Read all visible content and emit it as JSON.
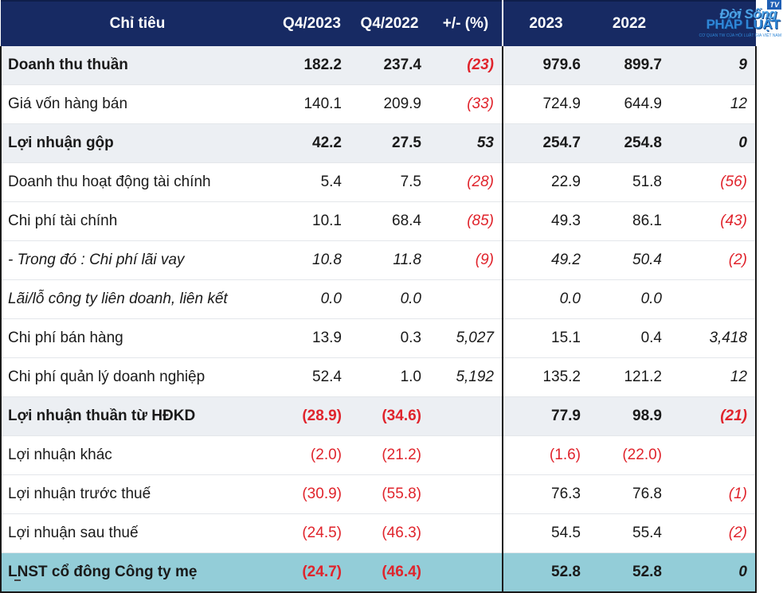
{
  "header": {
    "label": "Chỉ tiêu",
    "cols": [
      "Q4/2023",
      "Q4/2022",
      "+/- (%)",
      "2023",
      "2022",
      ""
    ]
  },
  "rows": [
    {
      "label": "Doanh thu thuần",
      "v": [
        "182.2",
        "237.4",
        "(23)",
        "979.6",
        "899.7",
        "9"
      ]
    },
    {
      "label": "Giá vốn hàng bán",
      "v": [
        "140.1",
        "209.9",
        "(33)",
        "724.9",
        "644.9",
        "12"
      ]
    },
    {
      "label": "Lợi nhuận gộp",
      "v": [
        "42.2",
        "27.5",
        "53",
        "254.7",
        "254.8",
        "0"
      ]
    },
    {
      "label": "Doanh thu hoạt động tài chính",
      "v": [
        "5.4",
        "7.5",
        "(28)",
        "22.9",
        "51.8",
        "(56)"
      ]
    },
    {
      "label": "Chi phí tài chính",
      "v": [
        "10.1",
        "68.4",
        "(85)",
        "49.3",
        "86.1",
        "(43)"
      ]
    },
    {
      "label": "- Trong đó : Chi phí lãi vay",
      "v": [
        "10.8",
        "11.8",
        "(9)",
        "49.2",
        "50.4",
        "(2)"
      ]
    },
    {
      "label": "Lãi/lỗ công ty liên doanh, liên kết",
      "v": [
        "0.0",
        "0.0",
        "",
        "0.0",
        "0.0",
        ""
      ]
    },
    {
      "label": "Chi phí bán hàng",
      "v": [
        "13.9",
        "0.3",
        "5,027",
        "15.1",
        "0.4",
        "3,418"
      ]
    },
    {
      "label": "Chi phí quản lý doanh nghiệp",
      "v": [
        "52.4",
        "1.0",
        "5,192",
        "135.2",
        "121.2",
        "12"
      ]
    },
    {
      "label": "Lợi nhuận thuần từ HĐKD",
      "v": [
        "(28.9)",
        "(34.6)",
        "",
        "77.9",
        "98.9",
        "(21)"
      ]
    },
    {
      "label": "Lợi nhuận khác",
      "v": [
        "(2.0)",
        "(21.2)",
        "",
        "(1.6)",
        "(22.0)",
        ""
      ]
    },
    {
      "label": "Lợi nhuận trước thuế",
      "v": [
        "(30.9)",
        "(55.8)",
        "",
        "76.3",
        "76.8",
        "(1)"
      ]
    },
    {
      "label": "Lợi nhuận sau thuế",
      "v": [
        "(24.5)",
        "(46.3)",
        "",
        "54.5",
        "55.4",
        "(2)"
      ]
    },
    {
      "label": "LNST cổ đông Công ty mẹ",
      "v": [
        "(24.7)",
        "(46.4)",
        "",
        "52.8",
        "52.8",
        "0"
      ]
    }
  ],
  "logo": {
    "badge": "TV",
    "line1": "Đời Sống",
    "line2": "PHÁP LUẬT",
    "tagline": "CƠ QUAN TW CỦA HỘI LUẬT GIA VIỆT NAM"
  },
  "colors": {
    "header_bg": "#172a63",
    "highlight_bg": "#eceff3",
    "total_bg": "#93cdd8",
    "negative": "#e0242c"
  }
}
